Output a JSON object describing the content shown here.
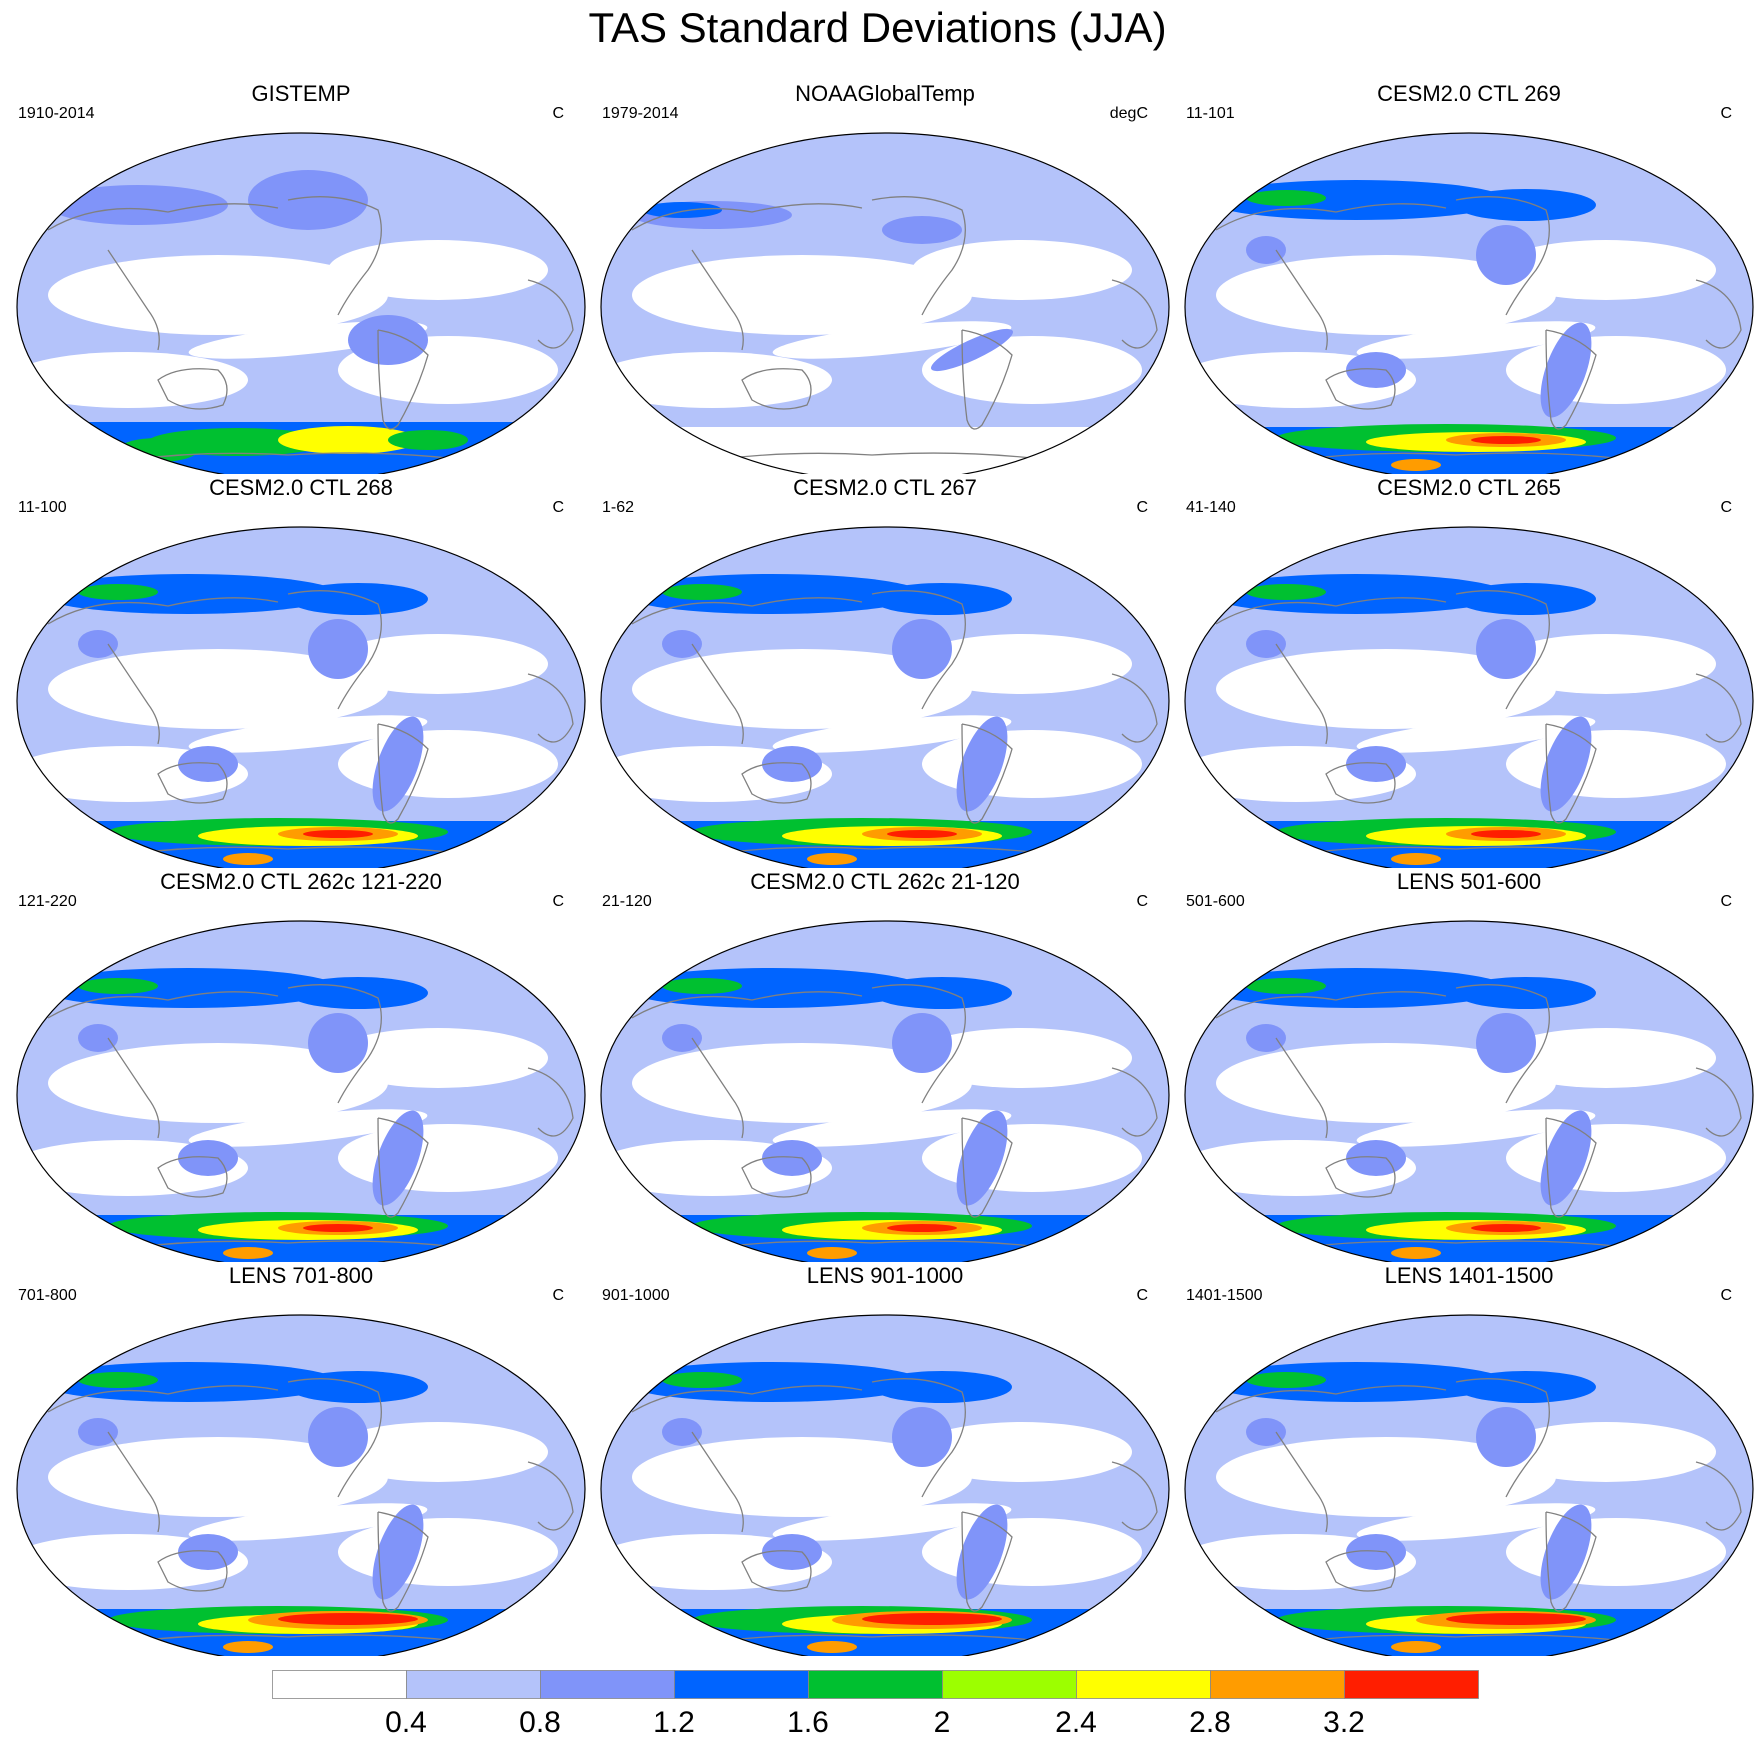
{
  "title": "TAS Standard Deviations (JJA)",
  "panels": [
    {
      "title": "GISTEMP",
      "left": "1910-2014",
      "right": "C",
      "style": "gistemp"
    },
    {
      "title": "NOAAGlobalTemp",
      "left": "1979-2014",
      "right": "degC",
      "style": "noaa"
    },
    {
      "title": "CESM2.0 CTL 269",
      "left": "11-101",
      "right": "C",
      "style": "model"
    },
    {
      "title": "CESM2.0 CTL 268",
      "left": "11-100",
      "right": "C",
      "style": "model"
    },
    {
      "title": "CESM2.0 CTL 267",
      "left": "1-62",
      "right": "C",
      "style": "model"
    },
    {
      "title": "CESM2.0 CTL 265",
      "left": "41-140",
      "right": "C",
      "style": "model"
    },
    {
      "title": "CESM2.0 CTL 262c 121-220",
      "left": "121-220",
      "right": "C",
      "style": "model"
    },
    {
      "title": "CESM2.0 CTL 262c 21-120",
      "left": "21-120",
      "right": "C",
      "style": "model"
    },
    {
      "title": "LENS 501-600",
      "left": "501-600",
      "right": "C",
      "style": "model"
    },
    {
      "title": "LENS 701-800",
      "left": "701-800",
      "right": "C",
      "style": "lens"
    },
    {
      "title": "LENS 901-1000",
      "left": "901-1000",
      "right": "C",
      "style": "lens"
    },
    {
      "title": "LENS 1401-1500",
      "left": "1401-1500",
      "right": "C",
      "style": "lens"
    }
  ],
  "colorbar": {
    "colors": [
      "#ffffff",
      "#b4c3fa",
      "#8094f9",
      "#0064ff",
      "#00c030",
      "#9cff00",
      "#ffff00",
      "#ff9c00",
      "#ff1e00"
    ],
    "labels": [
      "0.4",
      "0.8",
      "1.2",
      "1.6",
      "2",
      "2.4",
      "2.8",
      "3.2"
    ]
  },
  "land_color": "#808080"
}
